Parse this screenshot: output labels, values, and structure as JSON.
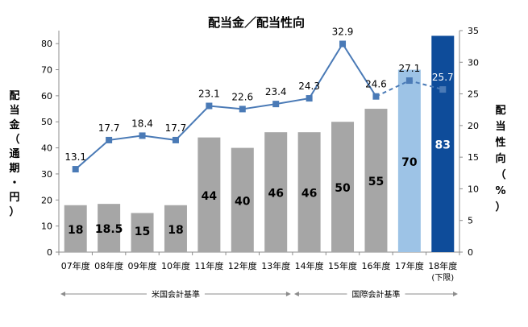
{
  "chart_data": {
    "type": "bar",
    "title": "配当金／配当性向",
    "ylabel": "配当金（通期・円）",
    "y2label": "配当性向（%）",
    "ylim": [
      0,
      85
    ],
    "y2lim": [
      0,
      35
    ],
    "yticks": [
      "0",
      "10",
      "20",
      "30",
      "40",
      "50",
      "60",
      "70",
      "80"
    ],
    "y2ticks": [
      "0",
      "5",
      "10",
      "15",
      "20",
      "25",
      "30",
      "35"
    ],
    "categories": [
      "07年度",
      "08年度",
      "09年度",
      "10年度",
      "11年度",
      "12年度",
      "13年度",
      "14年度",
      "15年度",
      "16年度",
      "17年度",
      "18年度"
    ],
    "category_note": "(下限)",
    "series": [
      {
        "type": "bar",
        "values": [
          18,
          18.5,
          15,
          18,
          44,
          40,
          46,
          46,
          50,
          55,
          70,
          83
        ],
        "labels": [
          "18",
          "18.5",
          "15",
          "18",
          "44",
          "40",
          "46",
          "46",
          "50",
          "55",
          "70",
          "83"
        ],
        "colors": [
          "#a6a6a6",
          "#a6a6a6",
          "#a6a6a6",
          "#a6a6a6",
          "#a6a6a6",
          "#a6a6a6",
          "#a6a6a6",
          "#a6a6a6",
          "#a6a6a6",
          "#a6a6a6",
          "#9dc3e6",
          "#0e4c9a"
        ]
      },
      {
        "type": "line",
        "axis": "right",
        "values": [
          13.1,
          17.7,
          18.4,
          17.7,
          23.1,
          22.6,
          23.4,
          24.3,
          32.9,
          24.6,
          27.1,
          25.7
        ],
        "labels": [
          "13.1",
          "17.7",
          "18.4",
          "17.7",
          "23.1",
          "22.6",
          "23.4",
          "24.3",
          "32.9",
          "24.6",
          "27.1",
          "25.7"
        ],
        "dashed_from_index": 10,
        "color": "#4a7ab6"
      }
    ],
    "standards": [
      {
        "label": "米国会計基準",
        "from": 0,
        "to": 6
      },
      {
        "label": "国際会計基準",
        "from": 7,
        "to": 11
      }
    ],
    "grid": false,
    "legend": "none"
  }
}
